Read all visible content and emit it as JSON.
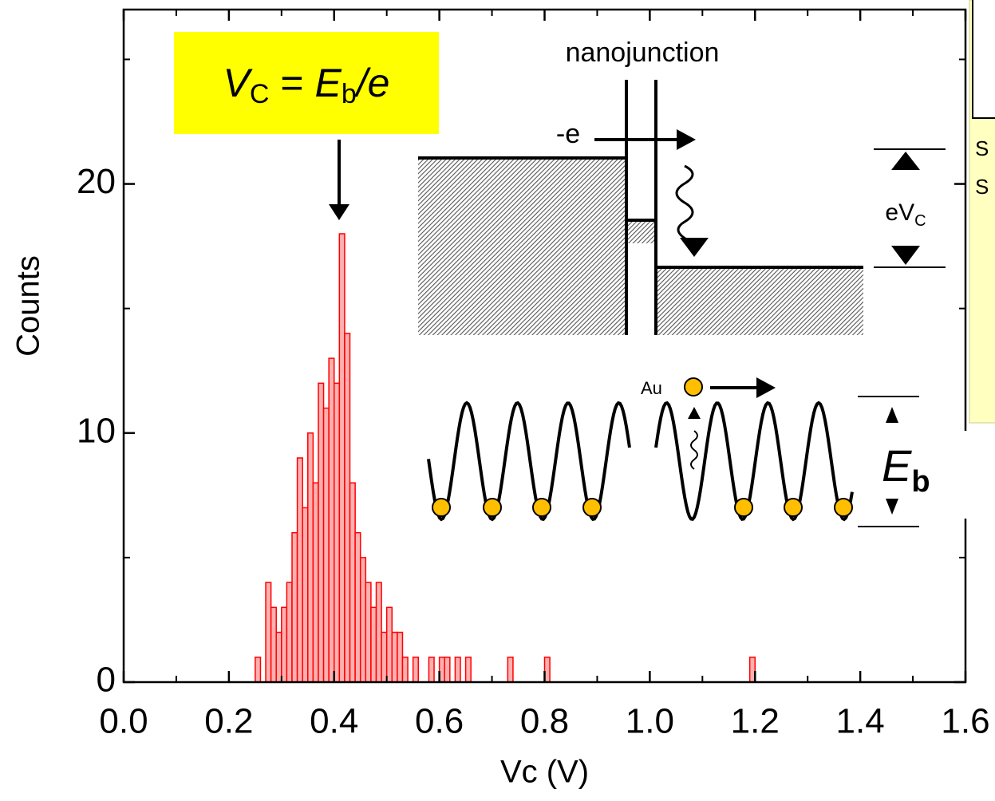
{
  "chart_data": {
    "type": "histogram",
    "x_label": "Vc (V)",
    "y_label": "Counts",
    "bins": [
      0.25,
      0.26,
      0.27,
      0.28,
      0.29,
      0.3,
      0.31,
      0.32,
      0.33,
      0.34,
      0.35,
      0.36,
      0.37,
      0.38,
      0.39,
      0.4,
      0.41,
      0.42,
      0.43,
      0.44,
      0.45,
      0.46,
      0.47,
      0.48,
      0.49,
      0.5,
      0.51,
      0.52,
      0.53,
      0.54,
      0.55,
      0.56,
      0.57,
      0.58,
      0.59,
      0.6,
      0.61,
      0.62,
      0.63,
      0.64,
      0.65,
      0.66,
      0.73,
      0.74,
      0.8,
      0.81,
      1.19,
      1.2
    ],
    "values": [
      1,
      0,
      4,
      3,
      2,
      3,
      4,
      6,
      9,
      7,
      10,
      8,
      12,
      11,
      13,
      12,
      18,
      14,
      8,
      6,
      5,
      4,
      3,
      4,
      2,
      3,
      2,
      2,
      1,
      0,
      1,
      0,
      0,
      1,
      0,
      1,
      1,
      0,
      1,
      0,
      1,
      0,
      1,
      0,
      1,
      0,
      1
    ],
    "color": "#ff0000",
    "xlim": [
      0,
      1.6
    ],
    "ylim": [
      0,
      27
    ],
    "xticks": [
      {
        "value": 0,
        "label": "0.0"
      },
      0.2,
      0.4,
      0.6,
      0.8,
      {
        "value": 1,
        "label": "1.0"
      },
      1.2,
      1.4,
      1.6
    ],
    "yticks": [
      0,
      10,
      20
    ],
    "annotations": {
      "formula": [
        "V",
        "C",
        " = ",
        "E",
        "b",
        "/e"
      ],
      "nanojunction": "nanojunction",
      "electron": "-e",
      "voltage": [
        "eV",
        "C"
      ],
      "atom": "Au",
      "barrier": [
        "E",
        "b"
      ],
      "side_panel_text": [
        "S",
        "S"
      ]
    }
  }
}
